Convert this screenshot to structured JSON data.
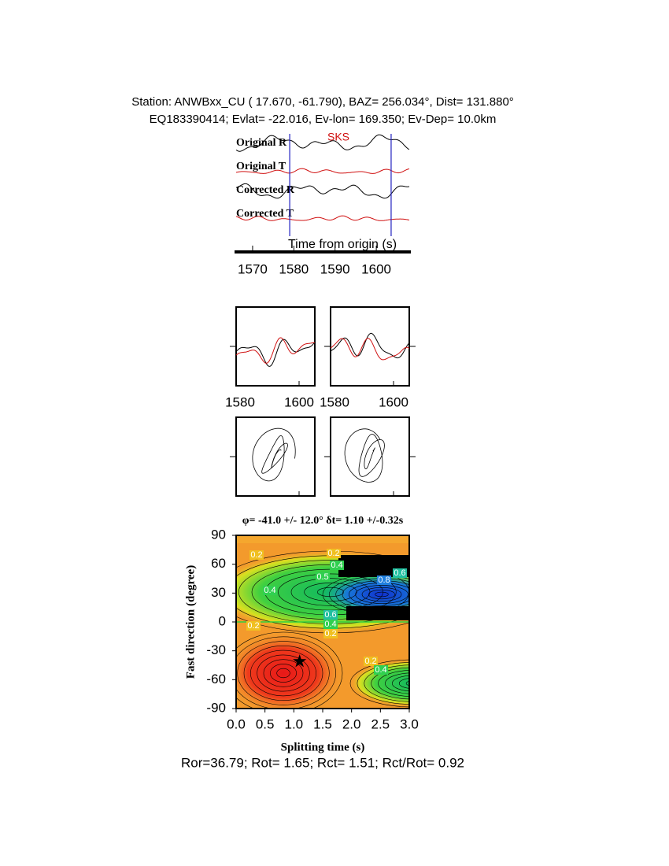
{
  "header": {
    "line1": "Station: ANWBxx_CU (  17.670,  -61.790), BAZ=  256.034°, Dist=  131.880°",
    "line2": "EQ183390414; Evlat= -22.016, Ev-lon= 169.350; Ev-Dep= 10.0km"
  },
  "chart_data": [
    {
      "type": "waveform",
      "traces": [
        "Original R",
        "Original T",
        "Corrected R",
        "Corrected T"
      ],
      "phase": "SKS",
      "xlabel": "Time from origin (s)",
      "xlim": [
        1566,
        1608
      ],
      "xticks": [
        1570,
        1580,
        1590,
        1600
      ],
      "window": [
        1579,
        1603.6
      ],
      "window_color": "#2020c0"
    },
    {
      "type": "waveform-pair",
      "xlim": [
        1580,
        1605
      ],
      "xticks": [
        1580,
        1600
      ]
    },
    {
      "type": "contour",
      "title": "φ= -41.0 +/- 12.0° δt= 1.10 +/-0.32s",
      "xlabel": "Splitting time (s)",
      "ylabel": "Fast direction (degree)",
      "xlim": [
        0,
        3
      ],
      "ylim": [
        -90,
        90
      ],
      "xticks": [
        {
          "value": 0,
          "label": "0.0"
        },
        0.5,
        {
          "value": 1,
          "label": "1.0"
        },
        1.5,
        {
          "value": 2,
          "label": "2.0"
        },
        2.5,
        {
          "value": 3,
          "label": "3.0"
        }
      ],
      "yticks": [
        -90,
        -60,
        -30,
        0,
        30,
        60,
        90
      ],
      "best": {
        "x": 1.1,
        "y": -41
      },
      "contour_labels": [
        0.2,
        0.2,
        0.4,
        0.6,
        0.5,
        0.8,
        0.4,
        0.6,
        0.4,
        0.2,
        0.2,
        0.2,
        0.4
      ]
    }
  ],
  "footer": "Ror=36.79; Rot= 1.65; Rct= 1.51; Rct/Rot= 0.92"
}
